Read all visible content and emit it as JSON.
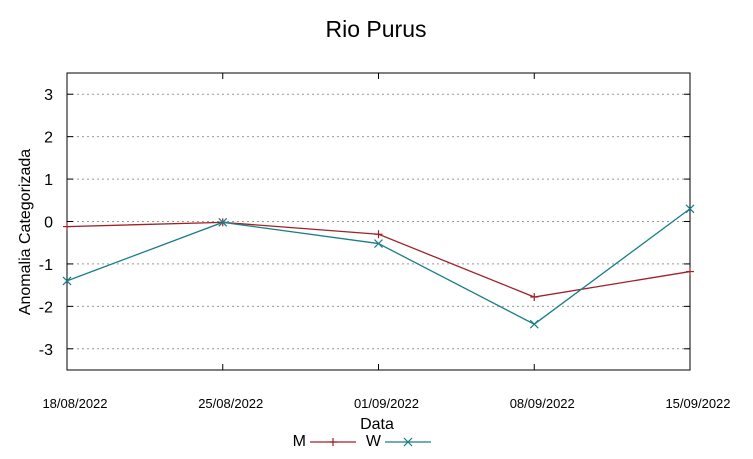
{
  "chart_data": {
    "type": "line",
    "title": "Rio Purus",
    "xlabel": "Data",
    "ylabel": "Anomalia Categorizada",
    "categories": [
      "18/08/2022",
      "25/08/2022",
      "01/09/2022",
      "08/09/2022",
      "15/09/2022"
    ],
    "ylim": [
      -3.5,
      3.5
    ],
    "yticks": [
      -3,
      -2,
      -1,
      0,
      1,
      2,
      3
    ],
    "grid": true,
    "legend": "bottom",
    "series": [
      {
        "name": "M",
        "color": "#a0202a",
        "marker": "plus",
        "values": [
          -0.12,
          -0.02,
          -0.3,
          -1.78,
          -1.18
        ]
      },
      {
        "name": "W",
        "color": "#1a7e86",
        "marker": "cross",
        "values": [
          -1.4,
          -0.02,
          -0.52,
          -2.42,
          0.3
        ]
      }
    ]
  }
}
